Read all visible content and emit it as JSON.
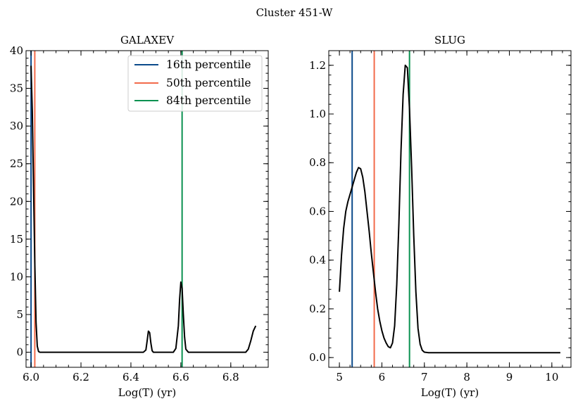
{
  "suptitle": "Cluster 451-W",
  "legend": [
    {
      "label": "16th percentile",
      "color": "#0b4a8b"
    },
    {
      "label": "50th percentile",
      "color": "#f26a4b"
    },
    {
      "label": "84th percentile",
      "color": "#0a9150"
    }
  ],
  "chart_data": [
    {
      "type": "line",
      "title": "GALAXEV",
      "xlabel": "Log(T) (yr)",
      "ylabel": "",
      "xlim": [
        5.98,
        6.95
      ],
      "ylim": [
        -2,
        40
      ],
      "xticks": [
        6.0,
        6.2,
        6.4,
        6.6,
        6.8
      ],
      "xticklabels": [
        "6.0",
        "6.2",
        "6.4",
        "6.6",
        "6.8"
      ],
      "yticks": [
        0,
        5,
        10,
        15,
        20,
        25,
        30,
        35,
        40
      ],
      "yticklabels": [
        "0",
        "5",
        "10",
        "15",
        "20",
        "25",
        "30",
        "35",
        "40"
      ],
      "legend_position": "top-right",
      "percentiles": {
        "p16": 6.0,
        "p50": 6.015,
        "p84": 6.605
      },
      "series": [
        {
          "color": "#000000",
          "x": [
            6.0,
            6.005,
            6.01,
            6.015,
            6.02,
            6.025,
            6.03,
            6.035,
            6.04,
            6.1,
            6.2,
            6.3,
            6.4,
            6.45,
            6.46,
            6.465,
            6.47,
            6.475,
            6.48,
            6.485,
            6.49,
            6.5,
            6.55,
            6.57,
            6.58,
            6.59,
            6.595,
            6.6,
            6.605,
            6.61,
            6.615,
            6.62,
            6.63,
            6.64,
            6.7,
            6.8,
            6.86,
            6.87,
            6.88,
            6.89,
            6.9
          ],
          "y": [
            38,
            32,
            22,
            12,
            4,
            0.8,
            0.1,
            0,
            0,
            0,
            0,
            0,
            0,
            0,
            0.3,
            1.5,
            2.8,
            2.6,
            1.2,
            0.2,
            0,
            0,
            0,
            0,
            0.5,
            3.5,
            7,
            9.3,
            8.5,
            5,
            2,
            0.4,
            0,
            0,
            0,
            0,
            0,
            0.4,
            1.5,
            2.8,
            3.5
          ]
        }
      ]
    },
    {
      "type": "line",
      "title": "SLUG",
      "xlabel": "Log(T) (yr)",
      "ylabel": "",
      "xlim": [
        4.75,
        10.45
      ],
      "ylim": [
        -0.04,
        1.26
      ],
      "xticks": [
        5,
        6,
        7,
        8,
        9,
        10
      ],
      "xticklabels": [
        "5",
        "6",
        "7",
        "8",
        "9",
        "10"
      ],
      "yticks": [
        0.0,
        0.2,
        0.4,
        0.6,
        0.8,
        1.0,
        1.2
      ],
      "yticklabels": [
        "0.0",
        "0.2",
        "0.4",
        "0.6",
        "0.8",
        "1.0",
        "1.2"
      ],
      "percentiles": {
        "p16": 5.3,
        "p50": 5.82,
        "p84": 6.65
      },
      "series": [
        {
          "color": "#000000",
          "x": [
            5.0,
            5.05,
            5.1,
            5.15,
            5.2,
            5.25,
            5.3,
            5.35,
            5.4,
            5.45,
            5.5,
            5.55,
            5.6,
            5.65,
            5.7,
            5.75,
            5.8,
            5.85,
            5.9,
            5.95,
            6.0,
            6.05,
            6.1,
            6.15,
            6.2,
            6.25,
            6.3,
            6.35,
            6.4,
            6.45,
            6.5,
            6.55,
            6.6,
            6.65,
            6.7,
            6.75,
            6.8,
            6.85,
            6.9,
            6.95,
            7.0,
            7.1,
            7.5,
            8.0,
            9.0,
            10.0,
            10.2
          ],
          "y": [
            0.27,
            0.42,
            0.53,
            0.6,
            0.64,
            0.67,
            0.7,
            0.73,
            0.76,
            0.78,
            0.775,
            0.74,
            0.68,
            0.6,
            0.52,
            0.43,
            0.35,
            0.27,
            0.2,
            0.15,
            0.11,
            0.08,
            0.06,
            0.045,
            0.04,
            0.06,
            0.13,
            0.3,
            0.55,
            0.85,
            1.08,
            1.2,
            1.19,
            1.02,
            0.78,
            0.5,
            0.27,
            0.12,
            0.055,
            0.03,
            0.022,
            0.02,
            0.02,
            0.02,
            0.02,
            0.02,
            0.02
          ]
        }
      ]
    }
  ]
}
